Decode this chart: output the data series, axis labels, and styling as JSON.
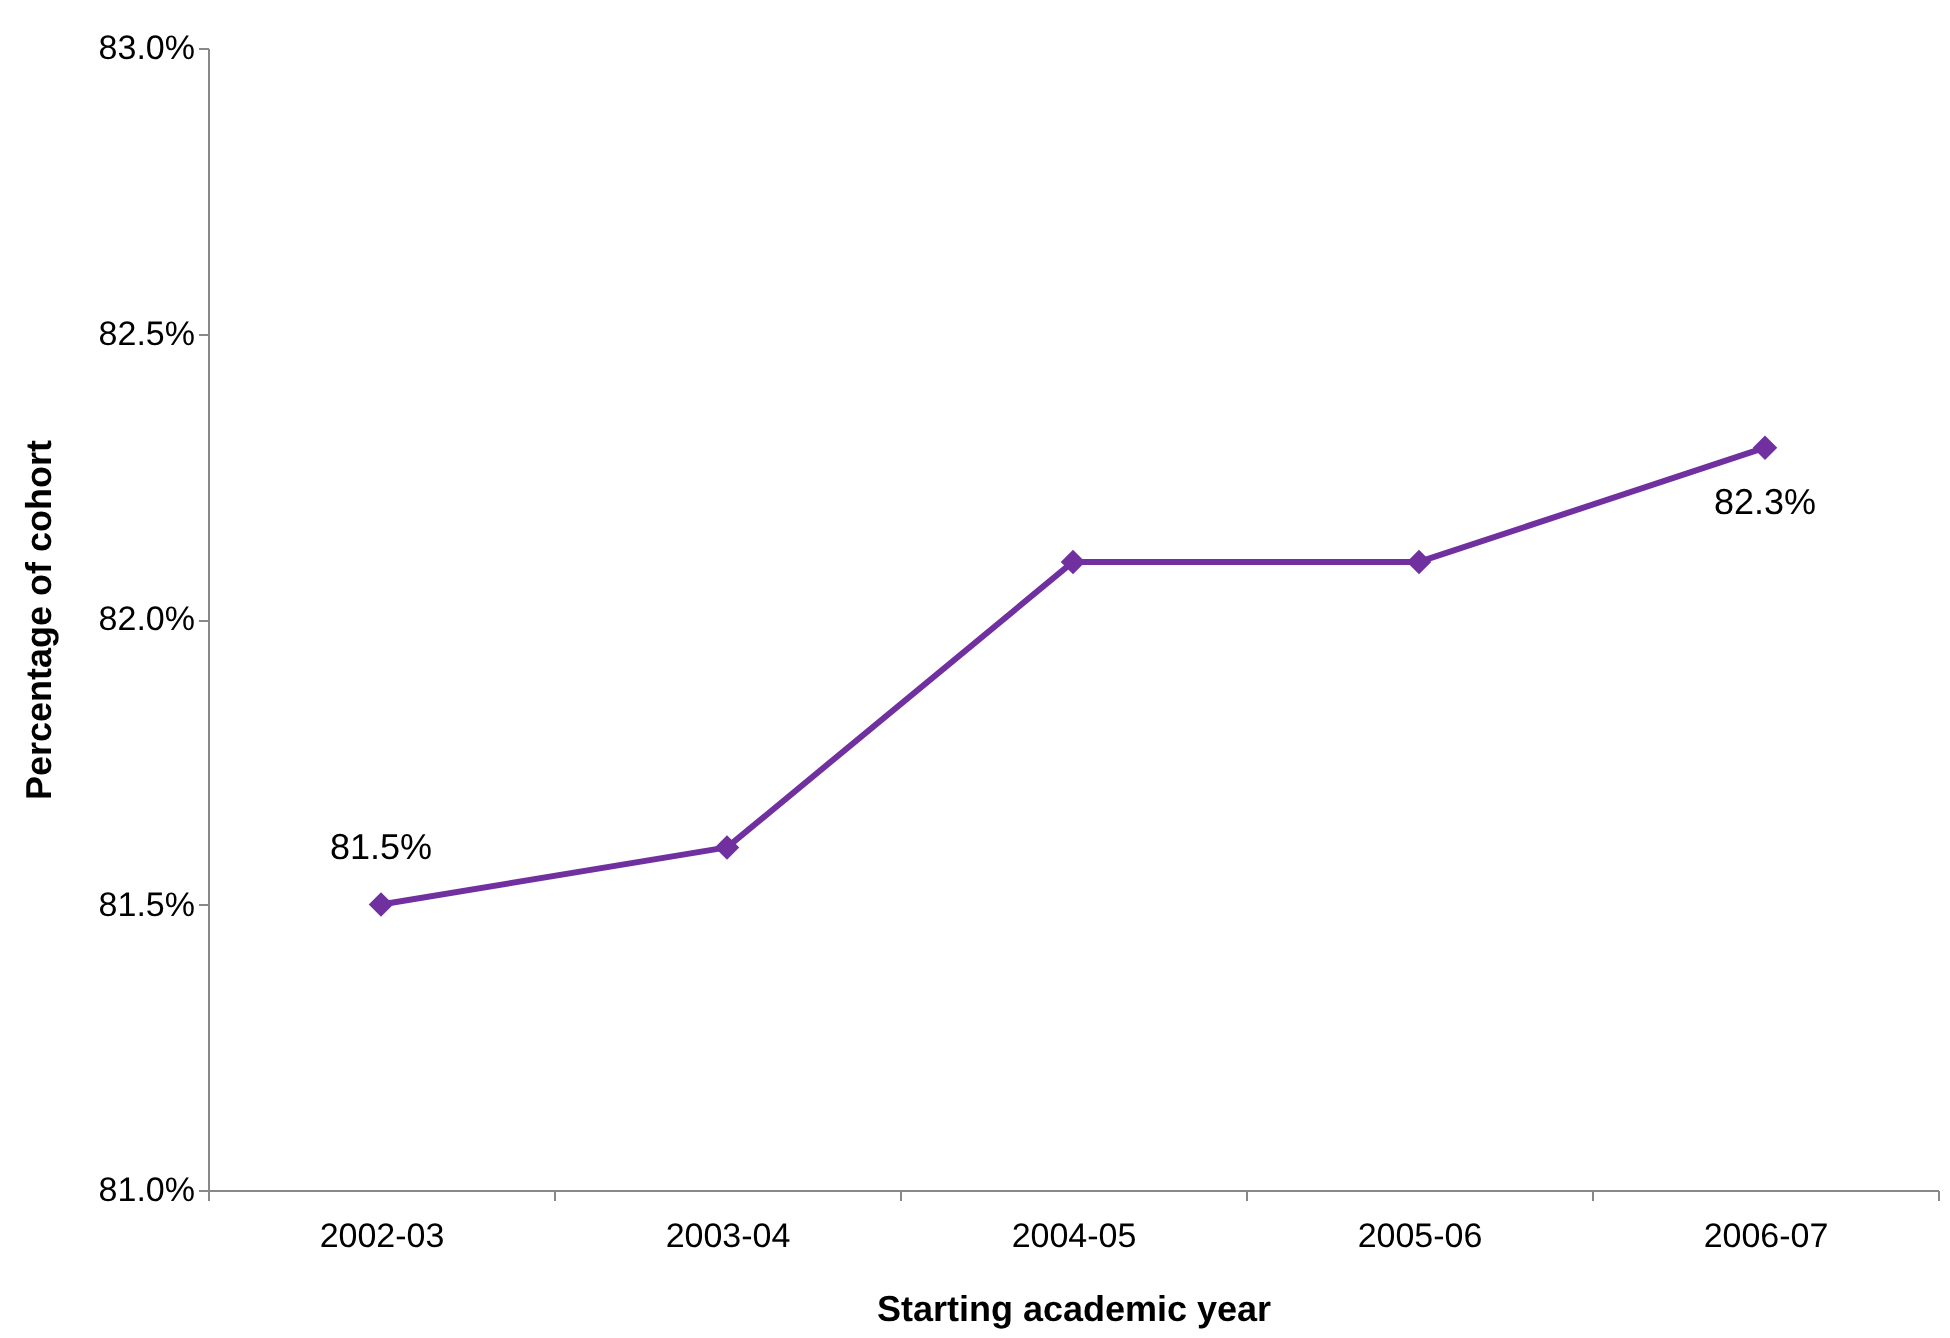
{
  "chart_data": {
    "type": "line",
    "xlabel": "Starting academic year",
    "ylabel": "Percentage of cohort",
    "categories": [
      "2002-03",
      "2003-04",
      "2004-05",
      "2005-06",
      "2006-07"
    ],
    "series": [
      {
        "color": "#7030a0",
        "values": [
          81.5,
          81.6,
          82.1,
          82.1,
          82.3
        ],
        "value_labels": [
          "81.5%",
          null,
          null,
          null,
          "82.3%"
        ]
      }
    ],
    "ylim": [
      81.0,
      83.0
    ],
    "yticks": [
      {
        "value": 81.0,
        "label": "81.0%"
      },
      {
        "value": 81.5,
        "label": "81.5%"
      },
      {
        "value": 82.0,
        "label": "82.0%"
      },
      {
        "value": 82.5,
        "label": "82.5%"
      },
      {
        "value": 83.0,
        "label": "83.0%"
      }
    ],
    "grid": false,
    "marker": "diamond",
    "line_style": "solid"
  }
}
